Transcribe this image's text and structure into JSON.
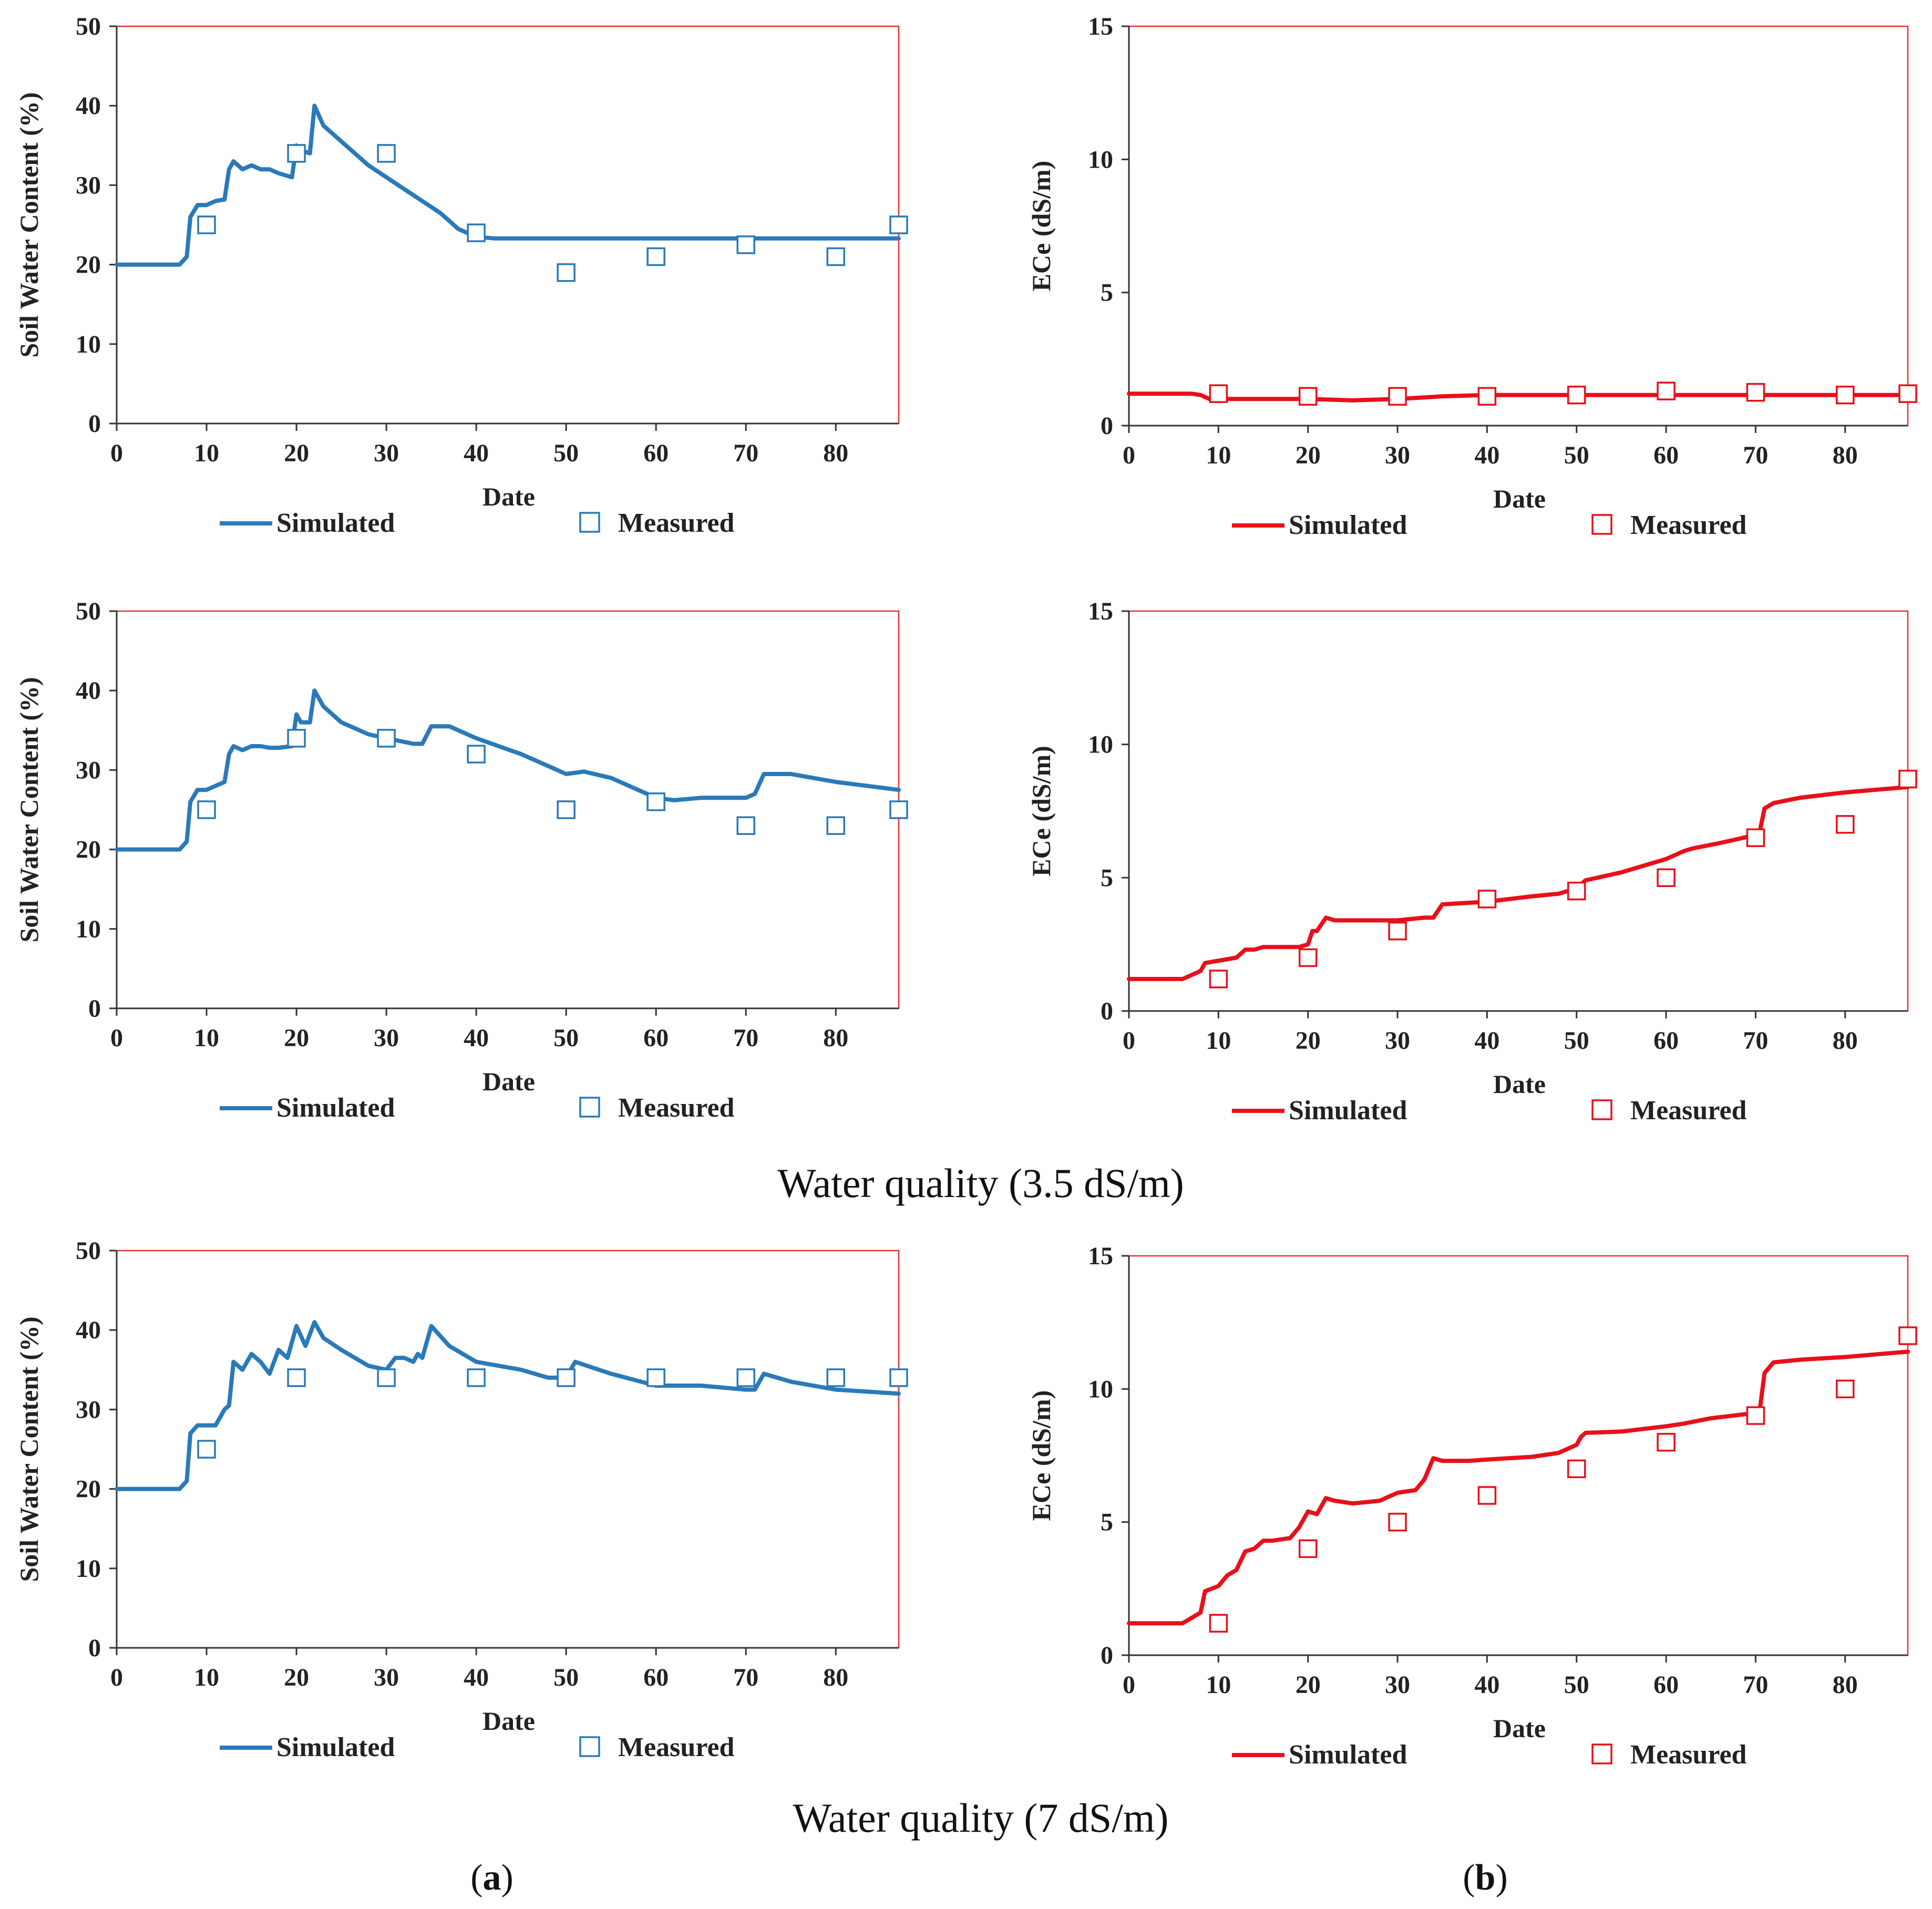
{
  "colors": {
    "blue": "#2a7ab9",
    "red": "#e8101a",
    "frame": "#e53030",
    "axis": "#333333"
  },
  "legend": {
    "simulated": "Simulated",
    "measured": "Measured"
  },
  "captions": {
    "row2": "Water quality (3.5 dS/m)",
    "row3": "Water quality (7 dS/m)"
  },
  "sublabels": {
    "a": {
      "open": "(",
      "letter": "a",
      "close": ")"
    },
    "b": {
      "open": "(",
      "letter": "b",
      "close": ")"
    }
  },
  "chart_data": [
    {
      "id": "a1",
      "type": "line",
      "color": "blue",
      "xlabel": "Date",
      "ylabel": "Soil Water Content (%)",
      "xlim": [
        0,
        87
      ],
      "ylim": [
        0,
        50
      ],
      "xticks": [
        0,
        10,
        20,
        30,
        40,
        50,
        60,
        70,
        80
      ],
      "yticks": [
        0,
        10,
        20,
        30,
        40,
        50
      ],
      "series": [
        {
          "name": "Simulated",
          "kind": "line",
          "x": [
            0,
            7,
            7.8,
            8.2,
            9,
            10,
            11,
            12,
            12.5,
            13,
            14,
            15,
            16,
            17,
            18,
            19.5,
            20,
            20.5,
            21,
            21.5,
            22,
            23,
            25,
            28,
            32,
            36,
            38,
            40,
            42,
            45,
            50,
            60,
            70,
            80,
            87
          ],
          "y": [
            20,
            20,
            21,
            26,
            27.5,
            27.5,
            28,
            28.2,
            32,
            33,
            32,
            32.5,
            32,
            32,
            31.5,
            31,
            35,
            34.5,
            34.2,
            34,
            40,
            37.5,
            35.5,
            32.5,
            29.5,
            26.5,
            24.5,
            23.5,
            23.3,
            23.3,
            23.3,
            23.3,
            23.3,
            23.3,
            23.3
          ]
        },
        {
          "name": "Measured",
          "kind": "markers",
          "x": [
            10,
            20,
            30,
            40,
            50,
            60,
            70,
            80,
            87
          ],
          "y": [
            25,
            34,
            34,
            24,
            19,
            21,
            22.5,
            21,
            25
          ]
        }
      ]
    },
    {
      "id": "b1",
      "type": "line",
      "color": "red",
      "xlabel": "Date",
      "ylabel": "ECe (dS/m)",
      "xlim": [
        0,
        87
      ],
      "ylim": [
        0,
        15
      ],
      "xticks": [
        0,
        10,
        20,
        30,
        40,
        50,
        60,
        70,
        80
      ],
      "yticks": [
        0,
        5,
        10,
        15
      ],
      "series": [
        {
          "name": "Simulated",
          "kind": "line",
          "x": [
            0,
            7,
            8,
            9,
            12,
            14,
            20,
            25,
            30,
            35,
            40,
            50,
            60,
            70,
            80,
            87
          ],
          "y": [
            1.2,
            1.2,
            1.15,
            1.0,
            1.0,
            1.0,
            1.0,
            0.95,
            1.0,
            1.1,
            1.15,
            1.15,
            1.15,
            1.15,
            1.15,
            1.15
          ]
        },
        {
          "name": "Measured",
          "kind": "markers",
          "x": [
            10,
            20,
            30,
            40,
            50,
            60,
            70,
            80,
            87
          ],
          "y": [
            1.2,
            1.1,
            1.1,
            1.1,
            1.15,
            1.3,
            1.25,
            1.15,
            1.2
          ]
        }
      ]
    },
    {
      "id": "a2",
      "type": "line",
      "color": "blue",
      "xlabel": "Date",
      "ylabel": "Soil Water Content (%)",
      "xlim": [
        0,
        87
      ],
      "ylim": [
        0,
        50
      ],
      "xticks": [
        0,
        10,
        20,
        30,
        40,
        50,
        60,
        70,
        80
      ],
      "yticks": [
        0,
        10,
        20,
        30,
        40,
        50
      ],
      "series": [
        {
          "name": "Simulated",
          "kind": "line",
          "x": [
            0,
            7,
            7.8,
            8.2,
            9,
            10,
            11,
            12,
            12.5,
            13,
            14,
            15,
            16,
            17,
            18,
            19.5,
            20,
            20.5,
            21,
            21.5,
            22,
            23,
            25,
            28,
            30,
            33,
            34,
            35,
            37,
            40,
            45,
            48,
            50,
            52,
            55,
            58,
            60,
            62,
            65,
            68,
            70,
            71,
            72,
            75,
            80,
            87
          ],
          "y": [
            20,
            20,
            21,
            26,
            27.5,
            27.5,
            28,
            28.5,
            32,
            33,
            32.5,
            33,
            33,
            32.8,
            32.8,
            33,
            37,
            36,
            36,
            36,
            40,
            38,
            36,
            34.5,
            34,
            33.3,
            33.3,
            35.5,
            35.5,
            34,
            32,
            30.5,
            29.5,
            29.8,
            29,
            27.5,
            26.5,
            26.2,
            26.5,
            26.5,
            26.5,
            27,
            29.5,
            29.5,
            28.5,
            27.5
          ]
        },
        {
          "name": "Measured",
          "kind": "markers",
          "x": [
            10,
            20,
            30,
            40,
            50,
            60,
            70,
            80,
            87
          ],
          "y": [
            25,
            34,
            34,
            32,
            25,
            26,
            23,
            23,
            25
          ]
        }
      ]
    },
    {
      "id": "b2",
      "type": "line",
      "color": "red",
      "xlabel": "Date",
      "ylabel": "ECe (dS/m)",
      "xlim": [
        0,
        87
      ],
      "ylim": [
        0,
        15
      ],
      "xticks": [
        0,
        10,
        20,
        30,
        40,
        50,
        60,
        70,
        80
      ],
      "yticks": [
        0,
        5,
        10,
        15
      ],
      "series": [
        {
          "name": "Simulated",
          "kind": "line",
          "x": [
            0,
            6,
            7,
            8,
            8.5,
            12,
            13,
            14,
            15,
            19,
            20,
            20.5,
            21,
            22,
            23,
            30,
            33,
            34,
            35,
            40,
            45,
            48,
            50,
            51,
            55,
            60,
            62,
            63,
            66,
            70,
            70.5,
            71,
            72,
            75,
            80,
            87
          ],
          "y": [
            1.2,
            1.2,
            1.35,
            1.5,
            1.8,
            2.0,
            2.3,
            2.3,
            2.4,
            2.4,
            2.5,
            3.0,
            3.0,
            3.5,
            3.4,
            3.4,
            3.5,
            3.5,
            4.0,
            4.1,
            4.3,
            4.4,
            4.6,
            4.9,
            5.2,
            5.7,
            6.0,
            6.1,
            6.3,
            6.6,
            6.8,
            7.6,
            7.8,
            8.0,
            8.2,
            8.4
          ]
        },
        {
          "name": "Measured",
          "kind": "markers",
          "x": [
            10,
            20,
            30,
            40,
            50,
            60,
            70,
            80,
            87
          ],
          "y": [
            1.2,
            2.0,
            3.0,
            4.2,
            4.5,
            5.0,
            6.5,
            7.0,
            8.7
          ]
        }
      ]
    },
    {
      "id": "a3",
      "type": "line",
      "color": "blue",
      "xlabel": "Date",
      "ylabel": "Soil Water Content (%)",
      "xlim": [
        0,
        87
      ],
      "ylim": [
        0,
        50
      ],
      "xticks": [
        0,
        10,
        20,
        30,
        40,
        50,
        60,
        70,
        80
      ],
      "yticks": [
        0,
        10,
        20,
        30,
        40,
        50
      ],
      "series": [
        {
          "name": "Simulated",
          "kind": "line",
          "x": [
            0,
            7,
            7.8,
            8.2,
            9,
            10,
            11,
            12,
            12.5,
            13,
            14,
            15,
            16,
            17,
            18,
            19,
            20,
            21,
            22,
            23,
            25,
            28,
            30,
            31,
            32,
            33,
            33.5,
            34,
            35,
            37,
            40,
            45,
            48,
            50,
            51,
            55,
            60,
            65,
            70,
            71,
            72,
            75,
            80,
            87
          ],
          "y": [
            20,
            20,
            21,
            27,
            28,
            28,
            28,
            30,
            30.5,
            36,
            35,
            37,
            36,
            34.5,
            37.5,
            36.5,
            40.5,
            38,
            41,
            39,
            37.5,
            35.5,
            35,
            36.5,
            36.5,
            36,
            37,
            36.5,
            40.5,
            38,
            36,
            35,
            34,
            34,
            36,
            34.5,
            33,
            33,
            32.5,
            32.5,
            34.5,
            33.5,
            32.5,
            32
          ]
        },
        {
          "name": "Measured",
          "kind": "markers",
          "x": [
            10,
            20,
            30,
            40,
            50,
            60,
            70,
            80,
            87
          ],
          "y": [
            25,
            34,
            34,
            34,
            34,
            34,
            34,
            34,
            34
          ]
        }
      ]
    },
    {
      "id": "b3",
      "type": "line",
      "color": "red",
      "xlabel": "Date",
      "ylabel": "ECe (dS/m)",
      "xlim": [
        0,
        87
      ],
      "ylim": [
        0,
        15
      ],
      "xticks": [
        0,
        10,
        20,
        30,
        40,
        50,
        60,
        70,
        80
      ],
      "yticks": [
        0,
        5,
        10,
        15
      ],
      "series": [
        {
          "name": "Simulated",
          "kind": "line",
          "x": [
            0,
            6,
            7,
            8,
            8.5,
            10,
            11,
            12,
            13,
            14,
            15,
            16,
            18,
            19,
            20,
            21,
            22,
            23,
            25,
            28,
            30,
            32,
            33,
            34,
            35,
            38,
            40,
            45,
            48,
            50,
            50.5,
            51,
            55,
            60,
            62,
            65,
            70,
            70.5,
            71,
            72,
            75,
            80,
            87
          ],
          "y": [
            1.2,
            1.2,
            1.4,
            1.6,
            2.4,
            2.6,
            3.0,
            3.2,
            3.9,
            4.0,
            4.3,
            4.3,
            4.4,
            4.8,
            5.4,
            5.3,
            5.9,
            5.8,
            5.7,
            5.8,
            6.1,
            6.2,
            6.6,
            7.4,
            7.3,
            7.3,
            7.35,
            7.45,
            7.6,
            7.9,
            8.2,
            8.35,
            8.4,
            8.6,
            8.7,
            8.9,
            9.1,
            9.3,
            10.6,
            11.0,
            11.1,
            11.2,
            11.4
          ]
        },
        {
          "name": "Measured",
          "kind": "markers",
          "x": [
            10,
            20,
            30,
            40,
            50,
            60,
            70,
            80,
            87
          ],
          "y": [
            1.2,
            4.0,
            5.0,
            6.0,
            7.0,
            8.0,
            9.0,
            10.0,
            12.0
          ]
        }
      ]
    }
  ]
}
